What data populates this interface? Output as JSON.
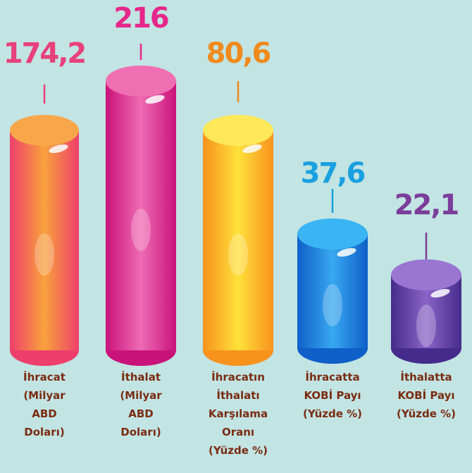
{
  "items": [
    {
      "value": "174,2",
      "label": [
        "İhracat",
        "(Milyar",
        "ABD",
        "Doları)"
      ]
    },
    {
      "value": "216",
      "label": [
        "İthalat",
        "(Milyar",
        "ABD",
        "Doları)"
      ]
    },
    {
      "value": "80,6",
      "label": [
        "İhracatın",
        "İthalatı",
        "Karşılama",
        "Oranı",
        "(Yüzde %)"
      ]
    },
    {
      "value": "37,6",
      "label": [
        "İhracatta",
        "KOBİ Payı",
        "(Yüzde %)"
      ]
    },
    {
      "value": "22,1",
      "label": [
        "İthalatta",
        "KOBİ Payı",
        "(Yüzde %)"
      ]
    }
  ]
}
